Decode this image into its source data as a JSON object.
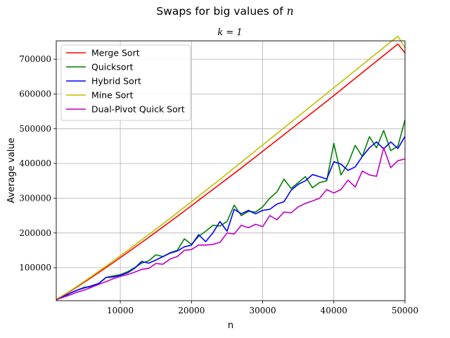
{
  "chart_data": {
    "type": "line",
    "title": "Swaps for big values of n",
    "title_text": "Swaps for big values of",
    "title_var": "n",
    "subtitle": "k = 1",
    "xlabel": "n",
    "ylabel": "Average value",
    "xlim": [
      1000,
      50000
    ],
    "ylim": [
      5000,
      753000
    ],
    "xticks": [
      10000,
      20000,
      30000,
      40000,
      50000
    ],
    "yticks": [
      100000,
      200000,
      300000,
      400000,
      500000,
      600000,
      700000
    ],
    "grid": true,
    "legend_position": "top-left",
    "x": [
      1000,
      2000,
      3000,
      4000,
      5000,
      6000,
      7000,
      8000,
      9000,
      10000,
      11000,
      12000,
      13000,
      14000,
      15000,
      16000,
      17000,
      18000,
      19000,
      20000,
      21000,
      22000,
      23000,
      24000,
      25000,
      26000,
      27000,
      28000,
      29000,
      30000,
      31000,
      32000,
      33000,
      34000,
      35000,
      36000,
      37000,
      38000,
      39000,
      40000,
      41000,
      42000,
      43000,
      44000,
      45000,
      46000,
      47000,
      48000,
      49000,
      50000
    ],
    "series": [
      {
        "name": "Merge Sort",
        "color": "#ff0000",
        "values": [
          8500,
          20000,
          32500,
          45500,
          59000,
          72500,
          86500,
          100500,
          114500,
          129000,
          143500,
          158000,
          172500,
          187500,
          202500,
          217500,
          232500,
          247500,
          263000,
          278500,
          294000,
          309500,
          325000,
          340500,
          356000,
          371500,
          387000,
          403000,
          419000,
          435000,
          451000,
          467000,
          483000,
          499000,
          515000,
          531000,
          547000,
          563000,
          579000,
          595500,
          612000,
          628500,
          645000,
          661500,
          678000,
          694500,
          711000,
          727500,
          744000,
          718000
        ]
      },
      {
        "name": "Quicksort",
        "color": "#008000",
        "values": [
          9000,
          17000,
          27000,
          36000,
          44000,
          45000,
          55000,
          72000,
          76000,
          80000,
          88000,
          100000,
          113000,
          120000,
          137000,
          132000,
          143000,
          150000,
          183000,
          167000,
          190000,
          205000,
          222000,
          220000,
          233000,
          280000,
          250000,
          262000,
          260000,
          275000,
          300000,
          318000,
          355000,
          328000,
          345000,
          362000,
          330000,
          345000,
          350000,
          458000,
          367000,
          400000,
          452000,
          420000,
          477000,
          445000,
          495000,
          437000,
          450000,
          525000
        ]
      },
      {
        "name": "Hybrid Sort",
        "color": "#0000ff",
        "values": [
          8500,
          17000,
          27000,
          36000,
          42000,
          48000,
          55000,
          72000,
          73000,
          78000,
          85000,
          98000,
          118000,
          113000,
          122000,
          132000,
          142000,
          148000,
          160000,
          165000,
          195000,
          175000,
          200000,
          233000,
          205000,
          268000,
          255000,
          265000,
          255000,
          265000,
          268000,
          283000,
          290000,
          323000,
          340000,
          350000,
          368000,
          362000,
          355000,
          405000,
          398000,
          380000,
          390000,
          420000,
          445000,
          462000,
          442000,
          462000,
          443000,
          478000
        ]
      },
      {
        "name": "Mine Sort",
        "color": "#bfbf00",
        "values": [
          9500,
          21000,
          34000,
          47500,
          61500,
          75500,
          90000,
          104500,
          119500,
          134500,
          149500,
          164500,
          180000,
          195500,
          211000,
          226500,
          242000,
          258000,
          274000,
          290000,
          306000,
          322000,
          338000,
          354000,
          370500,
          387000,
          403500,
          420000,
          436500,
          453000,
          469500,
          486000,
          502500,
          519000,
          535500,
          552000,
          568500,
          585000,
          601500,
          618000,
          634500,
          651000,
          667500,
          684000,
          700500,
          717000,
          733500,
          750000,
          766500,
          733000
        ]
      },
      {
        "name": "Dual-Pivot Quick Sort",
        "color": "#bf00bf",
        "values": [
          7500,
          15000,
          22000,
          30000,
          36000,
          44000,
          52000,
          60000,
          68000,
          75000,
          80000,
          87000,
          95000,
          98000,
          112000,
          110000,
          125000,
          132000,
          150000,
          152000,
          165000,
          165000,
          167000,
          173000,
          200000,
          197000,
          222000,
          215000,
          225000,
          218000,
          250000,
          238000,
          260000,
          258000,
          275000,
          285000,
          292000,
          300000,
          325000,
          315000,
          325000,
          352000,
          332000,
          378000,
          367000,
          363000,
          445000,
          388000,
          408000,
          413000
        ]
      }
    ]
  }
}
